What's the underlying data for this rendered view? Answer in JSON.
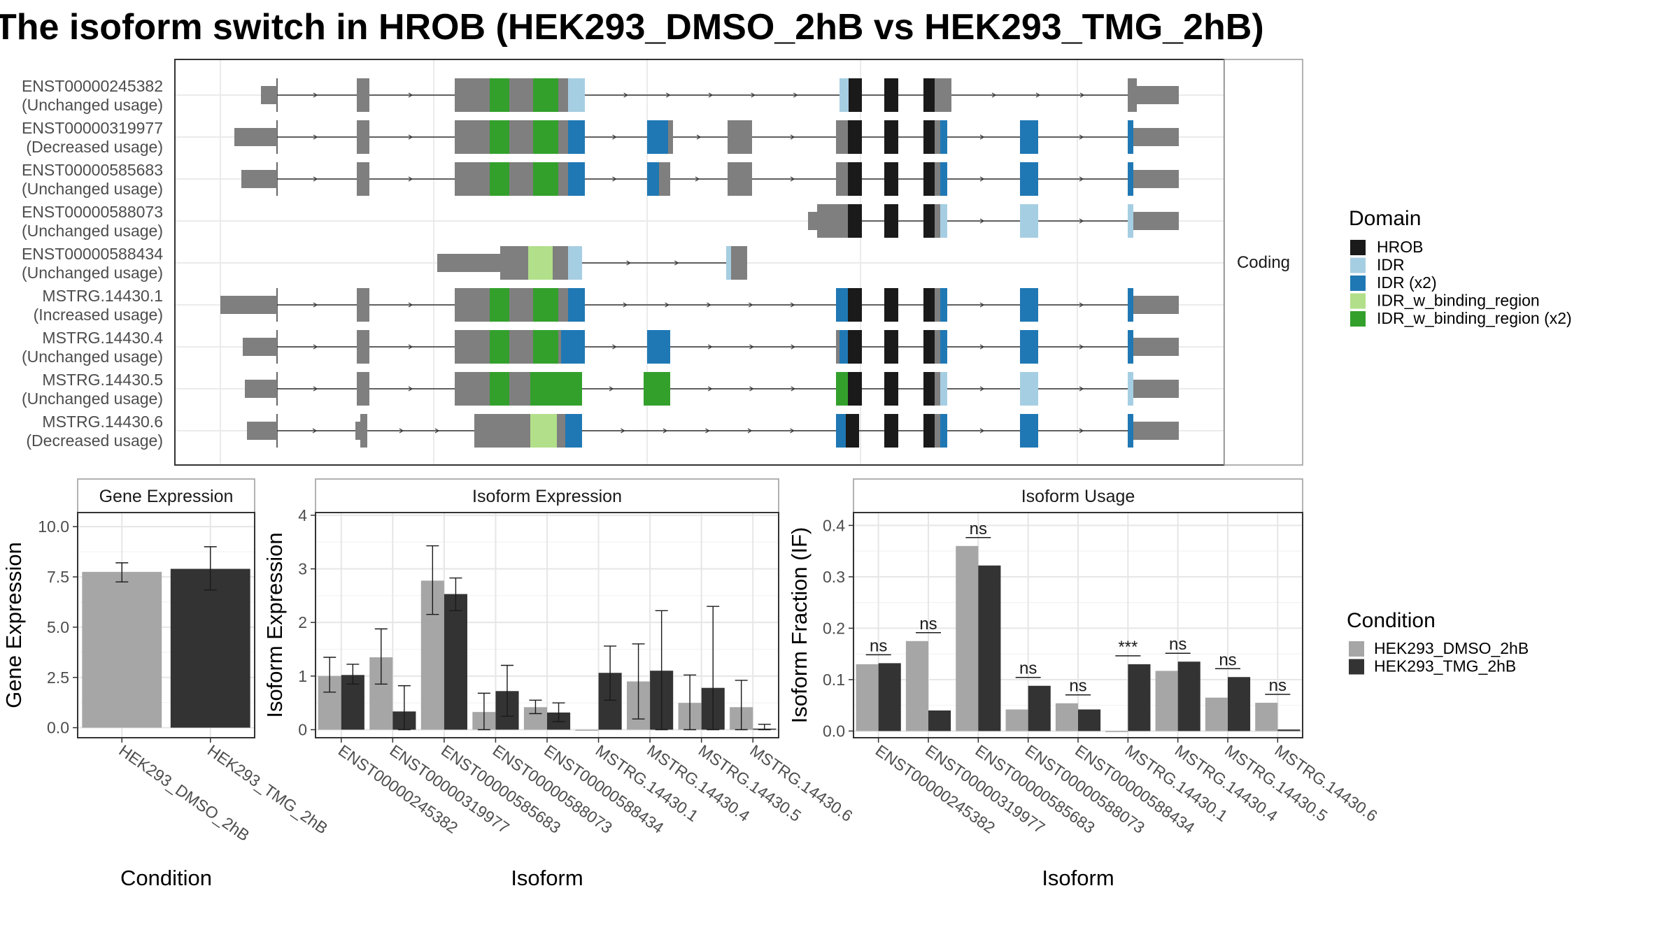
{
  "title": "The isoform switch in HROB (HEK293_DMSO_2hB vs HEK293_TMG_2hB)",
  "structure_panel": {
    "facet_label": "Coding",
    "isoforms": [
      {
        "id": "ENST00000245382",
        "status": "(Unchanged usage)"
      },
      {
        "id": "ENST00000319977",
        "status": "(Decreased usage)"
      },
      {
        "id": "ENST00000585683",
        "status": "(Unchanged usage)"
      },
      {
        "id": "ENST00000588073",
        "status": "(Unchanged usage)"
      },
      {
        "id": "ENST00000588434",
        "status": "(Unchanged usage)"
      },
      {
        "id": "MSTRG.14430.1",
        "status": "(Increased usage)"
      },
      {
        "id": "MSTRG.14430.4",
        "status": "(Unchanged usage)"
      },
      {
        "id": "MSTRG.14430.5",
        "status": "(Unchanged usage)"
      },
      {
        "id": "MSTRG.14430.6",
        "status": "(Decreased usage)"
      }
    ]
  },
  "domain_legend": {
    "title": "Domain",
    "items": [
      {
        "label": "HROB",
        "color": "#1a1a1a"
      },
      {
        "label": "IDR",
        "color": "#a6cee3"
      },
      {
        "label": "IDR (x2)",
        "color": "#1f78b4"
      },
      {
        "label": "IDR_w_binding_region",
        "color": "#b2df8a"
      },
      {
        "label": "IDR_w_binding_region (x2)",
        "color": "#33a02c"
      }
    ]
  },
  "condition_legend": {
    "title": "Condition",
    "items": [
      {
        "label": "HEK293_DMSO_2hB",
        "color": "#a6a6a6"
      },
      {
        "label": "HEK293_TMG_2hB",
        "color": "#333333"
      }
    ]
  },
  "chart_data": [
    {
      "type": "bar",
      "title": "Gene Expression",
      "xlabel": "Condition",
      "ylabel": "Gene Expression",
      "categories": [
        "HEK293_DMSO_2hB",
        "HEK293_TMG_2hB"
      ],
      "values": [
        7.75,
        7.9
      ],
      "err_low": [
        7.25,
        6.85
      ],
      "err_high": [
        8.2,
        9.0
      ],
      "ylim": [
        -0.5,
        10.7
      ],
      "yticks": [
        "0.0",
        "2.5",
        "5.0",
        "7.5",
        "10.0"
      ],
      "ytick_values": [
        0,
        2.5,
        5,
        7.5,
        10
      ],
      "colors": [
        "#a6a6a6",
        "#333333"
      ]
    },
    {
      "type": "bar",
      "title": "Isoform Expression",
      "xlabel": "Isoform",
      "ylabel": "Isoform Expression",
      "categories": [
        "ENST00000245382",
        "ENST00000319977",
        "ENST00000585683",
        "ENST00000588073",
        "ENST00000588434",
        "MSTRG.14430.1",
        "MSTRG.14430.4",
        "MSTRG.14430.5",
        "MSTRG.14430.6"
      ],
      "ylim": [
        -0.15,
        4.05
      ],
      "yticks": [
        "0",
        "1",
        "2",
        "3",
        "4"
      ],
      "ytick_values": [
        0,
        1,
        2,
        3,
        4
      ],
      "series": [
        {
          "name": "HEK293_DMSO_2hB",
          "values": [
            1.0,
            1.35,
            2.78,
            0.33,
            0.42,
            0.0,
            0.9,
            0.5,
            0.42
          ],
          "err_low": [
            0.7,
            0.85,
            2.15,
            0.0,
            0.3,
            0.0,
            0.2,
            0.0,
            0.0
          ],
          "err_high": [
            1.35,
            1.88,
            3.43,
            0.68,
            0.55,
            0.0,
            1.6,
            1.02,
            0.92
          ]
        },
        {
          "name": "HEK293_TMG_2hB",
          "values": [
            1.02,
            0.34,
            2.53,
            0.72,
            0.32,
            1.06,
            1.1,
            0.78,
            0.02
          ],
          "err_low": [
            0.85,
            0.0,
            2.22,
            0.25,
            0.15,
            0.55,
            0.0,
            0.0,
            0.0
          ],
          "err_high": [
            1.22,
            0.82,
            2.83,
            1.2,
            0.5,
            1.56,
            2.22,
            2.3,
            0.1
          ]
        }
      ]
    },
    {
      "type": "bar",
      "title": "Isoform Usage",
      "xlabel": "Isoform",
      "ylabel": "Isoform Fraction (IF)",
      "categories": [
        "ENST00000245382",
        "ENST00000319977",
        "ENST00000585683",
        "ENST00000588073",
        "ENST00000588434",
        "MSTRG.14430.1",
        "MSTRG.14430.4",
        "MSTRG.14430.5",
        "MSTRG.14430.6"
      ],
      "ylim": [
        -0.013,
        0.425
      ],
      "yticks": [
        "0.0",
        "0.1",
        "0.2",
        "0.3",
        "0.4"
      ],
      "ytick_values": [
        0,
        0.1,
        0.2,
        0.3,
        0.4
      ],
      "significance": [
        "ns",
        "ns",
        "ns",
        "ns",
        "ns",
        "***",
        "ns",
        "ns",
        "ns"
      ],
      "series": [
        {
          "name": "HEK293_DMSO_2hB",
          "values": [
            0.13,
            0.175,
            0.36,
            0.042,
            0.054,
            0.0,
            0.117,
            0.065,
            0.055
          ]
        },
        {
          "name": "HEK293_TMG_2hB",
          "values": [
            0.132,
            0.04,
            0.322,
            0.088,
            0.042,
            0.13,
            0.135,
            0.105,
            0.003
          ]
        }
      ]
    }
  ]
}
